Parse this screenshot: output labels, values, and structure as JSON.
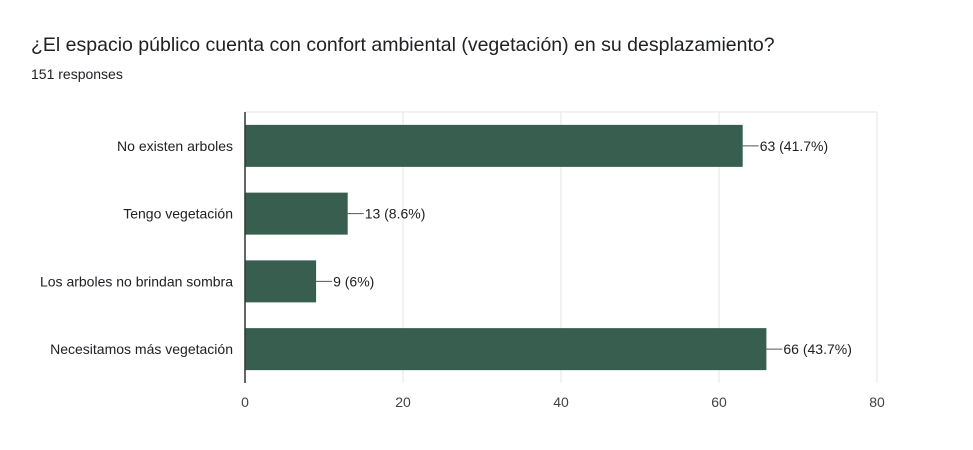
{
  "header": {
    "title": "¿El espacio público cuenta con confort ambiental (vegetación) en su desplazamiento?",
    "responses": "151 responses"
  },
  "colors": {
    "bar": "#375e4f",
    "grid": "#e6e6e6",
    "axis": "#333333"
  },
  "chart_data": {
    "type": "bar",
    "orientation": "horizontal",
    "categories": [
      "No existen arboles",
      "Tengo vegetación",
      "Los arboles no brindan sombra",
      "Necesitamos más vegetación"
    ],
    "values": [
      63,
      13,
      9,
      66
    ],
    "data_labels": [
      "63 (41.7%)",
      "13 (8.6%)",
      "9 (6%)",
      "66 (43.7%)"
    ],
    "xlim": [
      0,
      80
    ],
    "xticks": [
      0,
      20,
      40,
      60,
      80
    ],
    "grid": true,
    "legend": "none"
  }
}
